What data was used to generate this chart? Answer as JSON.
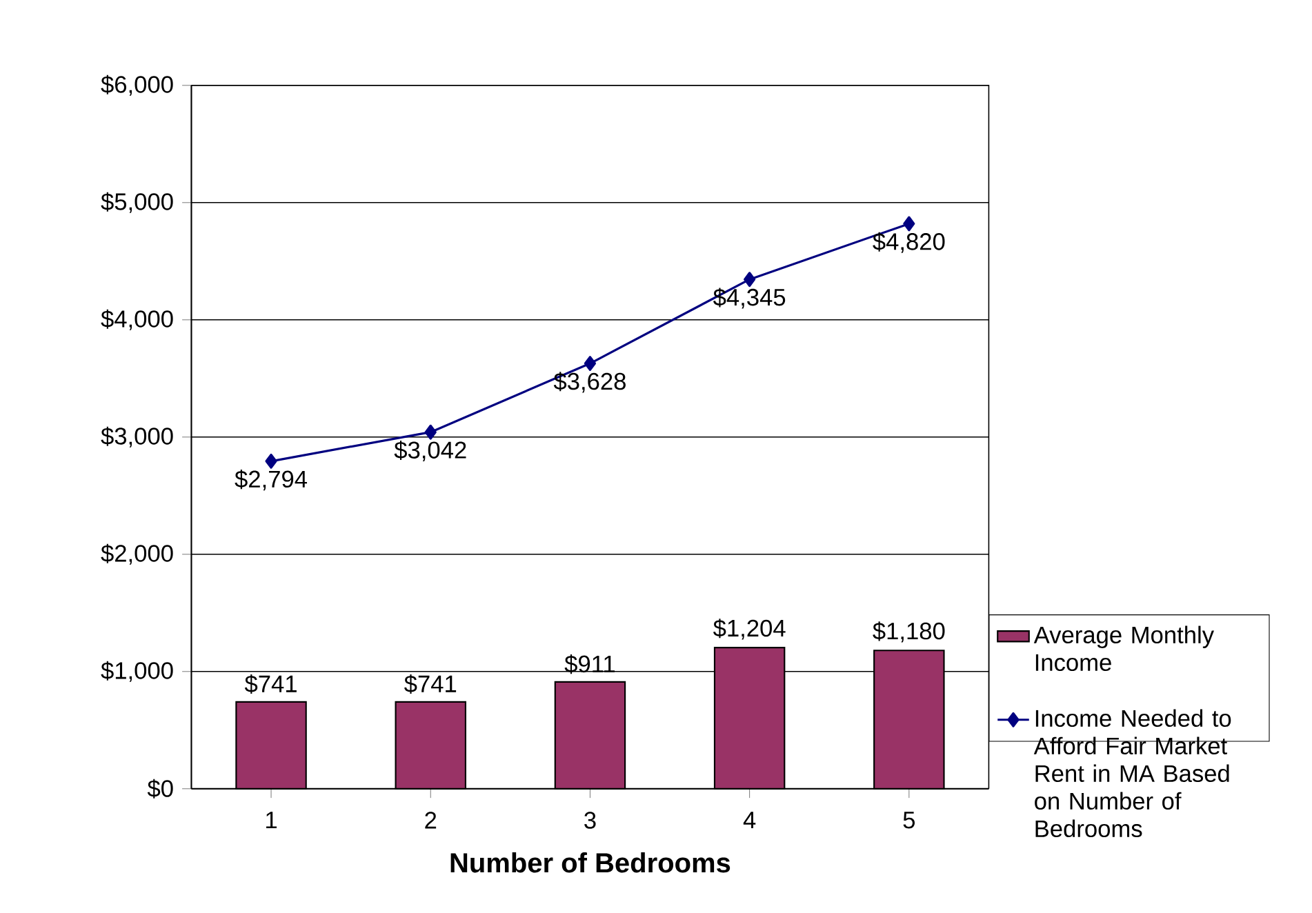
{
  "chart_data": {
    "type": "bar",
    "xlabel": "Number of Bedrooms",
    "categories": [
      "1",
      "2",
      "3",
      "4",
      "5"
    ],
    "series": [
      {
        "name": "Average Monthly Income",
        "color": "#993366",
        "values": [
          741,
          741,
          911,
          1204,
          1180
        ],
        "value_labels": [
          "$741",
          "$741",
          "$911",
          "$1,204",
          "$1,180"
        ]
      },
      {
        "name": "Income Needed to Afford Fair Market Rent in MA Based on Number of Bedrooms",
        "type": "line",
        "color": "#000080",
        "marker": "diamond",
        "values": [
          2794,
          3042,
          3628,
          4345,
          4820
        ],
        "value_labels": [
          "$2,794",
          "$3,042",
          "$3,628",
          "$4,345",
          "$4,820"
        ]
      }
    ],
    "ylim": [
      0,
      6000
    ],
    "yticks": [
      {
        "value": 0,
        "label": "$0"
      },
      {
        "value": 1000,
        "label": "$1,000"
      },
      {
        "value": 2000,
        "label": "$2,000"
      },
      {
        "value": 3000,
        "label": "$3,000"
      },
      {
        "value": 4000,
        "label": "$4,000"
      },
      {
        "value": 5000,
        "label": "$5,000"
      },
      {
        "value": 6000,
        "label": "$6,000"
      }
    ],
    "grid": "y",
    "legend": "right"
  }
}
